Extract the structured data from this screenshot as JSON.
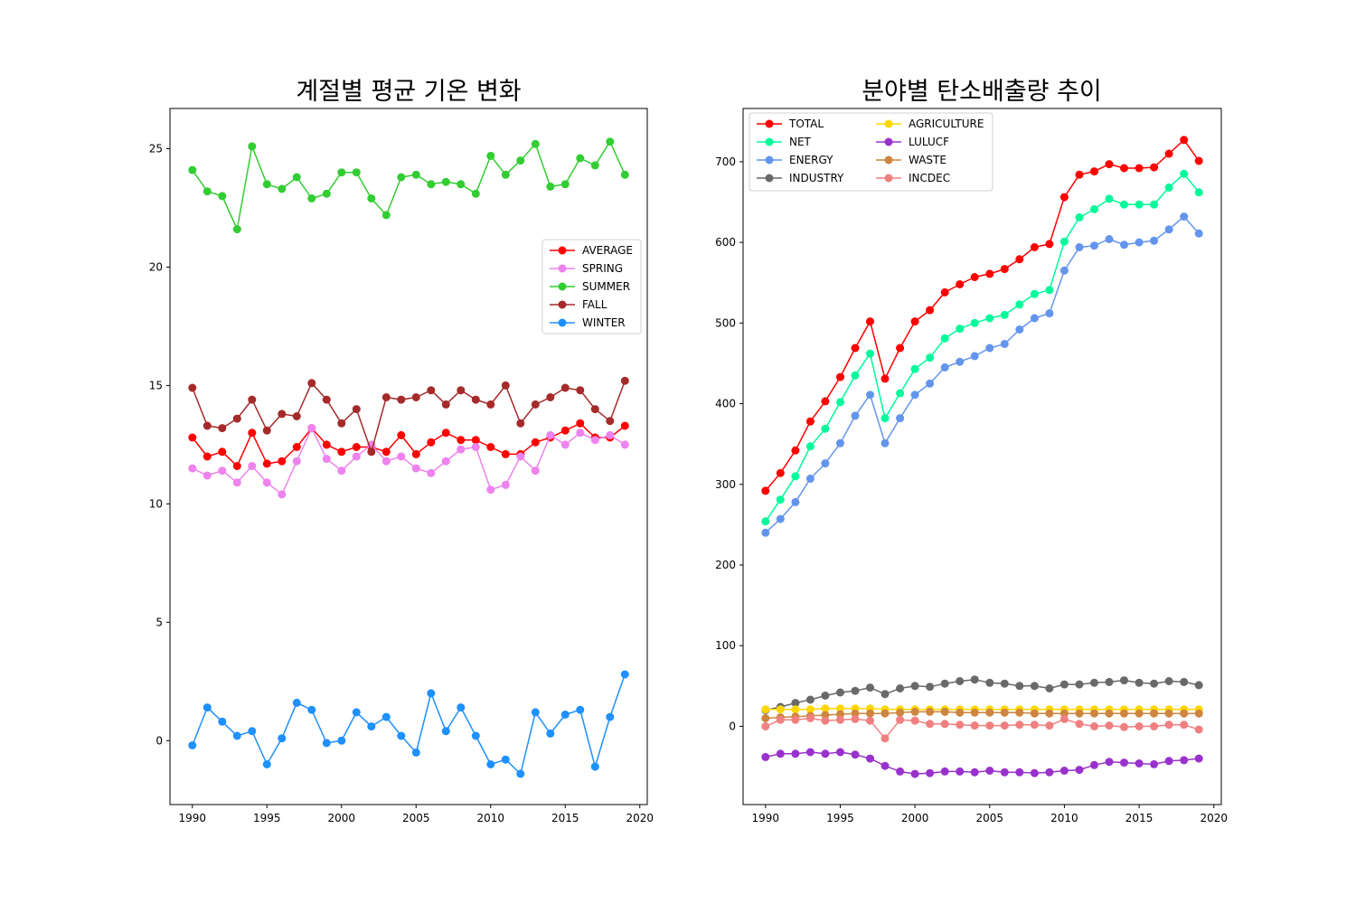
{
  "chart_data": [
    {
      "type": "line",
      "title": "계절별 평균 기온 변화",
      "x": [
        1990,
        1991,
        1992,
        1993,
        1994,
        1995,
        1996,
        1997,
        1998,
        1999,
        2000,
        2001,
        2002,
        2003,
        2004,
        2005,
        2006,
        2007,
        2008,
        2009,
        2010,
        2011,
        2012,
        2013,
        2014,
        2015,
        2016,
        2017,
        2018,
        2019
      ],
      "xlim": [
        1988.5,
        2020.5
      ],
      "ylim": [
        -2.7,
        26.7
      ],
      "xticks": [
        1990,
        1995,
        2000,
        2005,
        2010,
        2015,
        2020
      ],
      "yticks": [
        0,
        5,
        10,
        15,
        20,
        25
      ],
      "legend": "center-right",
      "series": [
        {
          "name": "AVERAGE",
          "color": "#ff0000",
          "values": [
            12.8,
            12.0,
            12.2,
            11.6,
            13.0,
            11.7,
            11.8,
            12.4,
            13.2,
            12.5,
            12.2,
            12.4,
            12.4,
            12.2,
            12.9,
            12.1,
            12.6,
            13.0,
            12.7,
            12.7,
            12.4,
            12.1,
            12.1,
            12.6,
            12.8,
            13.1,
            13.4,
            12.8,
            12.8,
            13.3
          ]
        },
        {
          "name": "SPRING",
          "color": "#ee82ee",
          "values": [
            11.5,
            11.2,
            11.4,
            10.9,
            11.6,
            10.9,
            10.4,
            11.8,
            13.2,
            11.9,
            11.4,
            12.0,
            12.5,
            11.8,
            12.0,
            11.5,
            11.3,
            11.8,
            12.3,
            12.4,
            10.6,
            10.8,
            12.0,
            11.4,
            12.9,
            12.5,
            13.0,
            12.7,
            12.9,
            12.5
          ]
        },
        {
          "name": "SUMMER",
          "color": "#32cd32",
          "values": [
            24.1,
            23.2,
            23.0,
            21.6,
            25.1,
            23.5,
            23.3,
            23.8,
            22.9,
            23.1,
            24.0,
            24.0,
            22.9,
            22.2,
            23.8,
            23.9,
            23.5,
            23.6,
            23.5,
            23.1,
            24.7,
            23.9,
            24.5,
            25.2,
            23.4,
            23.5,
            24.6,
            24.3,
            25.3,
            23.9
          ]
        },
        {
          "name": "FALL",
          "color": "#a52a2a",
          "values": [
            14.9,
            13.3,
            13.2,
            13.6,
            14.4,
            13.1,
            13.8,
            13.7,
            15.1,
            14.4,
            13.4,
            14.0,
            12.2,
            14.5,
            14.4,
            14.5,
            14.8,
            14.2,
            14.8,
            14.4,
            14.2,
            15.0,
            13.4,
            14.2,
            14.5,
            14.9,
            14.8,
            14.0,
            13.5,
            15.2
          ]
        },
        {
          "name": "WINTER",
          "color": "#1e90ff",
          "values": [
            -0.2,
            1.4,
            0.8,
            0.2,
            0.4,
            -1.0,
            0.1,
            1.6,
            1.3,
            -0.1,
            0.0,
            1.2,
            0.6,
            1.0,
            0.2,
            -0.5,
            2.0,
            0.4,
            1.4,
            0.2,
            -1.0,
            -0.8,
            -1.4,
            1.2,
            0.3,
            1.1,
            1.3,
            -1.1,
            1.0,
            2.8
          ]
        }
      ]
    },
    {
      "type": "line",
      "title": "분야별 탄소배출량 추이",
      "x": [
        1990,
        1991,
        1992,
        1993,
        1994,
        1995,
        1996,
        1997,
        1998,
        1999,
        2000,
        2001,
        2002,
        2003,
        2004,
        2005,
        2006,
        2007,
        2008,
        2009,
        2010,
        2011,
        2012,
        2013,
        2014,
        2015,
        2016,
        2017,
        2018,
        2019
      ],
      "xlim": [
        1988.5,
        2020.5
      ],
      "ylim": [
        -97,
        766
      ],
      "xticks": [
        1990,
        1995,
        2000,
        2005,
        2010,
        2015,
        2020
      ],
      "yticks": [
        0,
        100,
        200,
        300,
        400,
        500,
        600,
        700
      ],
      "legend": "upper-left, 2 columns",
      "series": [
        {
          "name": "TOTAL",
          "color": "#ff0000",
          "values": [
            292,
            314,
            342,
            378,
            403,
            433,
            469,
            502,
            431,
            469,
            502,
            516,
            538,
            548,
            557,
            561,
            567,
            579,
            594,
            598,
            656,
            684,
            688,
            697,
            692,
            692,
            693,
            710,
            727,
            701
          ]
        },
        {
          "name": "NET",
          "color": "#00fa9a",
          "values": [
            254,
            281,
            310,
            347,
            369,
            402,
            435,
            462,
            382,
            413,
            443,
            457,
            481,
            493,
            500,
            506,
            510,
            523,
            536,
            541,
            601,
            631,
            641,
            654,
            647,
            647,
            647,
            668,
            685,
            662
          ]
        },
        {
          "name": "ENERGY",
          "color": "#6495ed",
          "values": [
            240,
            257,
            278,
            307,
            326,
            351,
            385,
            411,
            351,
            382,
            411,
            425,
            445,
            452,
            459,
            469,
            474,
            492,
            506,
            512,
            565,
            594,
            596,
            604,
            597,
            600,
            602,
            616,
            632,
            611
          ]
        },
        {
          "name": "INDUSTRY",
          "color": "#696969",
          "values": [
            20,
            24,
            29,
            33,
            38,
            42,
            44,
            48,
            40,
            47,
            50,
            49,
            53,
            56,
            58,
            54,
            53,
            50,
            50,
            47,
            52,
            52,
            54,
            55,
            57,
            54,
            53,
            56,
            55,
            51
          ]
        },
        {
          "name": "AGRICULTURE",
          "color": "#ffd700",
          "values": [
            21,
            21,
            21,
            21,
            22,
            22,
            22,
            22,
            21,
            21,
            21,
            21,
            21,
            21,
            21,
            21,
            21,
            21,
            21,
            21,
            21,
            21,
            21,
            21,
            21,
            21,
            21,
            21,
            21,
            21
          ]
        },
        {
          "name": "LULUCF",
          "color": "#9932cc",
          "values": [
            -38,
            -34,
            -34,
            -32,
            -34,
            -32,
            -35,
            -40,
            -49,
            -56,
            -59,
            -58,
            -56,
            -56,
            -57,
            -55,
            -57,
            -57,
            -58,
            -57,
            -55,
            -54,
            -48,
            -44,
            -45,
            -46,
            -47,
            -43,
            -42,
            -40
          ]
        },
        {
          "name": "WASTE",
          "color": "#cd853f",
          "values": [
            10,
            11,
            12,
            13,
            14,
            15,
            16,
            16,
            16,
            17,
            18,
            18,
            18,
            17,
            17,
            17,
            17,
            17,
            16,
            16,
            16,
            16,
            16,
            16,
            16,
            16,
            16,
            16,
            16,
            16
          ]
        },
        {
          "name": "INCDEC",
          "color": "#f08080",
          "values": [
            0,
            8,
            8,
            10,
            7,
            8,
            9,
            7,
            -15,
            8,
            7,
            3,
            3,
            2,
            1,
            1,
            1,
            2,
            2,
            1,
            9,
            3,
            0,
            1,
            -1,
            0,
            0,
            2,
            2,
            -4
          ]
        }
      ]
    }
  ]
}
